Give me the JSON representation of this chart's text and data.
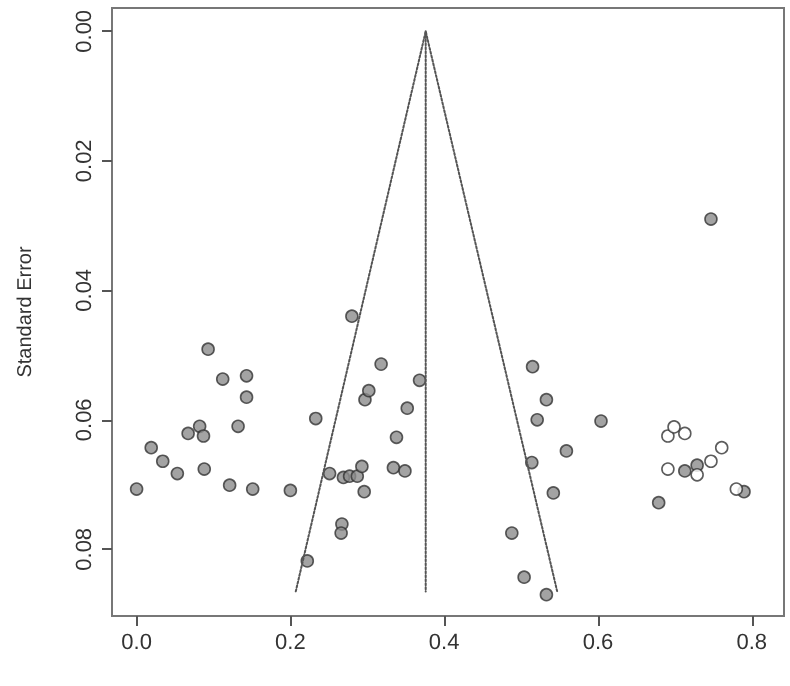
{
  "chart_data": {
    "type": "scatter",
    "ylabel": "Standard Error",
    "xlim": [
      -0.032,
      0.842
    ],
    "ylim": [
      0.0903,
      -0.0036
    ],
    "xticks": [
      {
        "value": 0,
        "label": "0.0"
      },
      {
        "value": 0.2,
        "label": "0.2"
      },
      {
        "value": 0.4,
        "label": "0.4"
      },
      {
        "value": 0.6,
        "label": "0.6"
      },
      {
        "value": 0.8,
        "label": "0.8"
      }
    ],
    "yticks": [
      {
        "value": 0,
        "label": "0.00"
      },
      {
        "value": 0.02,
        "label": "0.02"
      },
      {
        "value": 0.04,
        "label": "0.04"
      },
      {
        "value": 0.06,
        "label": "0.06"
      },
      {
        "value": 0.08,
        "label": "0.08"
      }
    ],
    "grid": false,
    "marker": "circle",
    "series": [
      {
        "type": "scatter",
        "color": "#8c8c8c",
        "x": [
          0.0,
          0.019,
          0.034,
          0.053,
          0.067,
          0.082,
          0.087,
          0.088,
          0.093,
          0.112,
          0.121,
          0.132,
          0.143,
          0.143,
          0.151,
          0.2,
          0.233,
          0.222,
          0.251,
          0.269,
          0.277,
          0.287,
          0.293,
          0.296,
          0.267,
          0.266,
          0.28,
          0.297,
          0.302,
          0.318,
          0.352,
          0.338,
          0.334,
          0.349,
          0.368,
          0.747,
          0.515,
          0.533,
          0.521,
          0.604,
          0.559,
          0.514,
          0.542,
          0.488,
          0.504,
          0.533,
          0.679,
          0.713,
          0.729,
          0.79
        ],
        "values": [
          0.0707,
          0.0643,
          0.0664,
          0.0683,
          0.0621,
          0.061,
          0.0625,
          0.0676,
          0.0491,
          0.0537,
          0.0701,
          0.061,
          0.0532,
          0.0565,
          0.0707,
          0.0709,
          0.0598,
          0.0818,
          0.0683,
          0.0689,
          0.0687,
          0.0687,
          0.0672,
          0.0711,
          0.0761,
          0.0775,
          0.044,
          0.0569,
          0.0555,
          0.0514,
          0.0582,
          0.0627,
          0.0674,
          0.0679,
          0.0539,
          0.029,
          0.0518,
          0.0569,
          0.06,
          0.0602,
          0.0648,
          0.0666,
          0.0713,
          0.0775,
          0.0843,
          0.087,
          0.0728,
          0.0679,
          0.067,
          0.0711
        ]
      },
      {
        "type": "scatter",
        "color": "#ffffff",
        "x": [
          0.691,
          0.699,
          0.713,
          0.761,
          0.747,
          0.691,
          0.729,
          0.78
        ],
        "values": [
          0.0625,
          0.0611,
          0.0621,
          0.0643,
          0.0664,
          0.0676,
          0.0685,
          0.0707
        ]
      },
      {
        "type": "line",
        "color": "#555555",
        "line_style": "dotted",
        "marker": "none",
        "x": [
          0.207,
          0.376,
          0.547
        ],
        "values": [
          0.0865,
          0,
          0.0865
        ]
      },
      {
        "type": "line",
        "color": "#555555",
        "line_style": "dotted",
        "marker": "none",
        "x": [
          0.376,
          0.376
        ],
        "values": [
          0,
          0.0865
        ]
      }
    ]
  }
}
